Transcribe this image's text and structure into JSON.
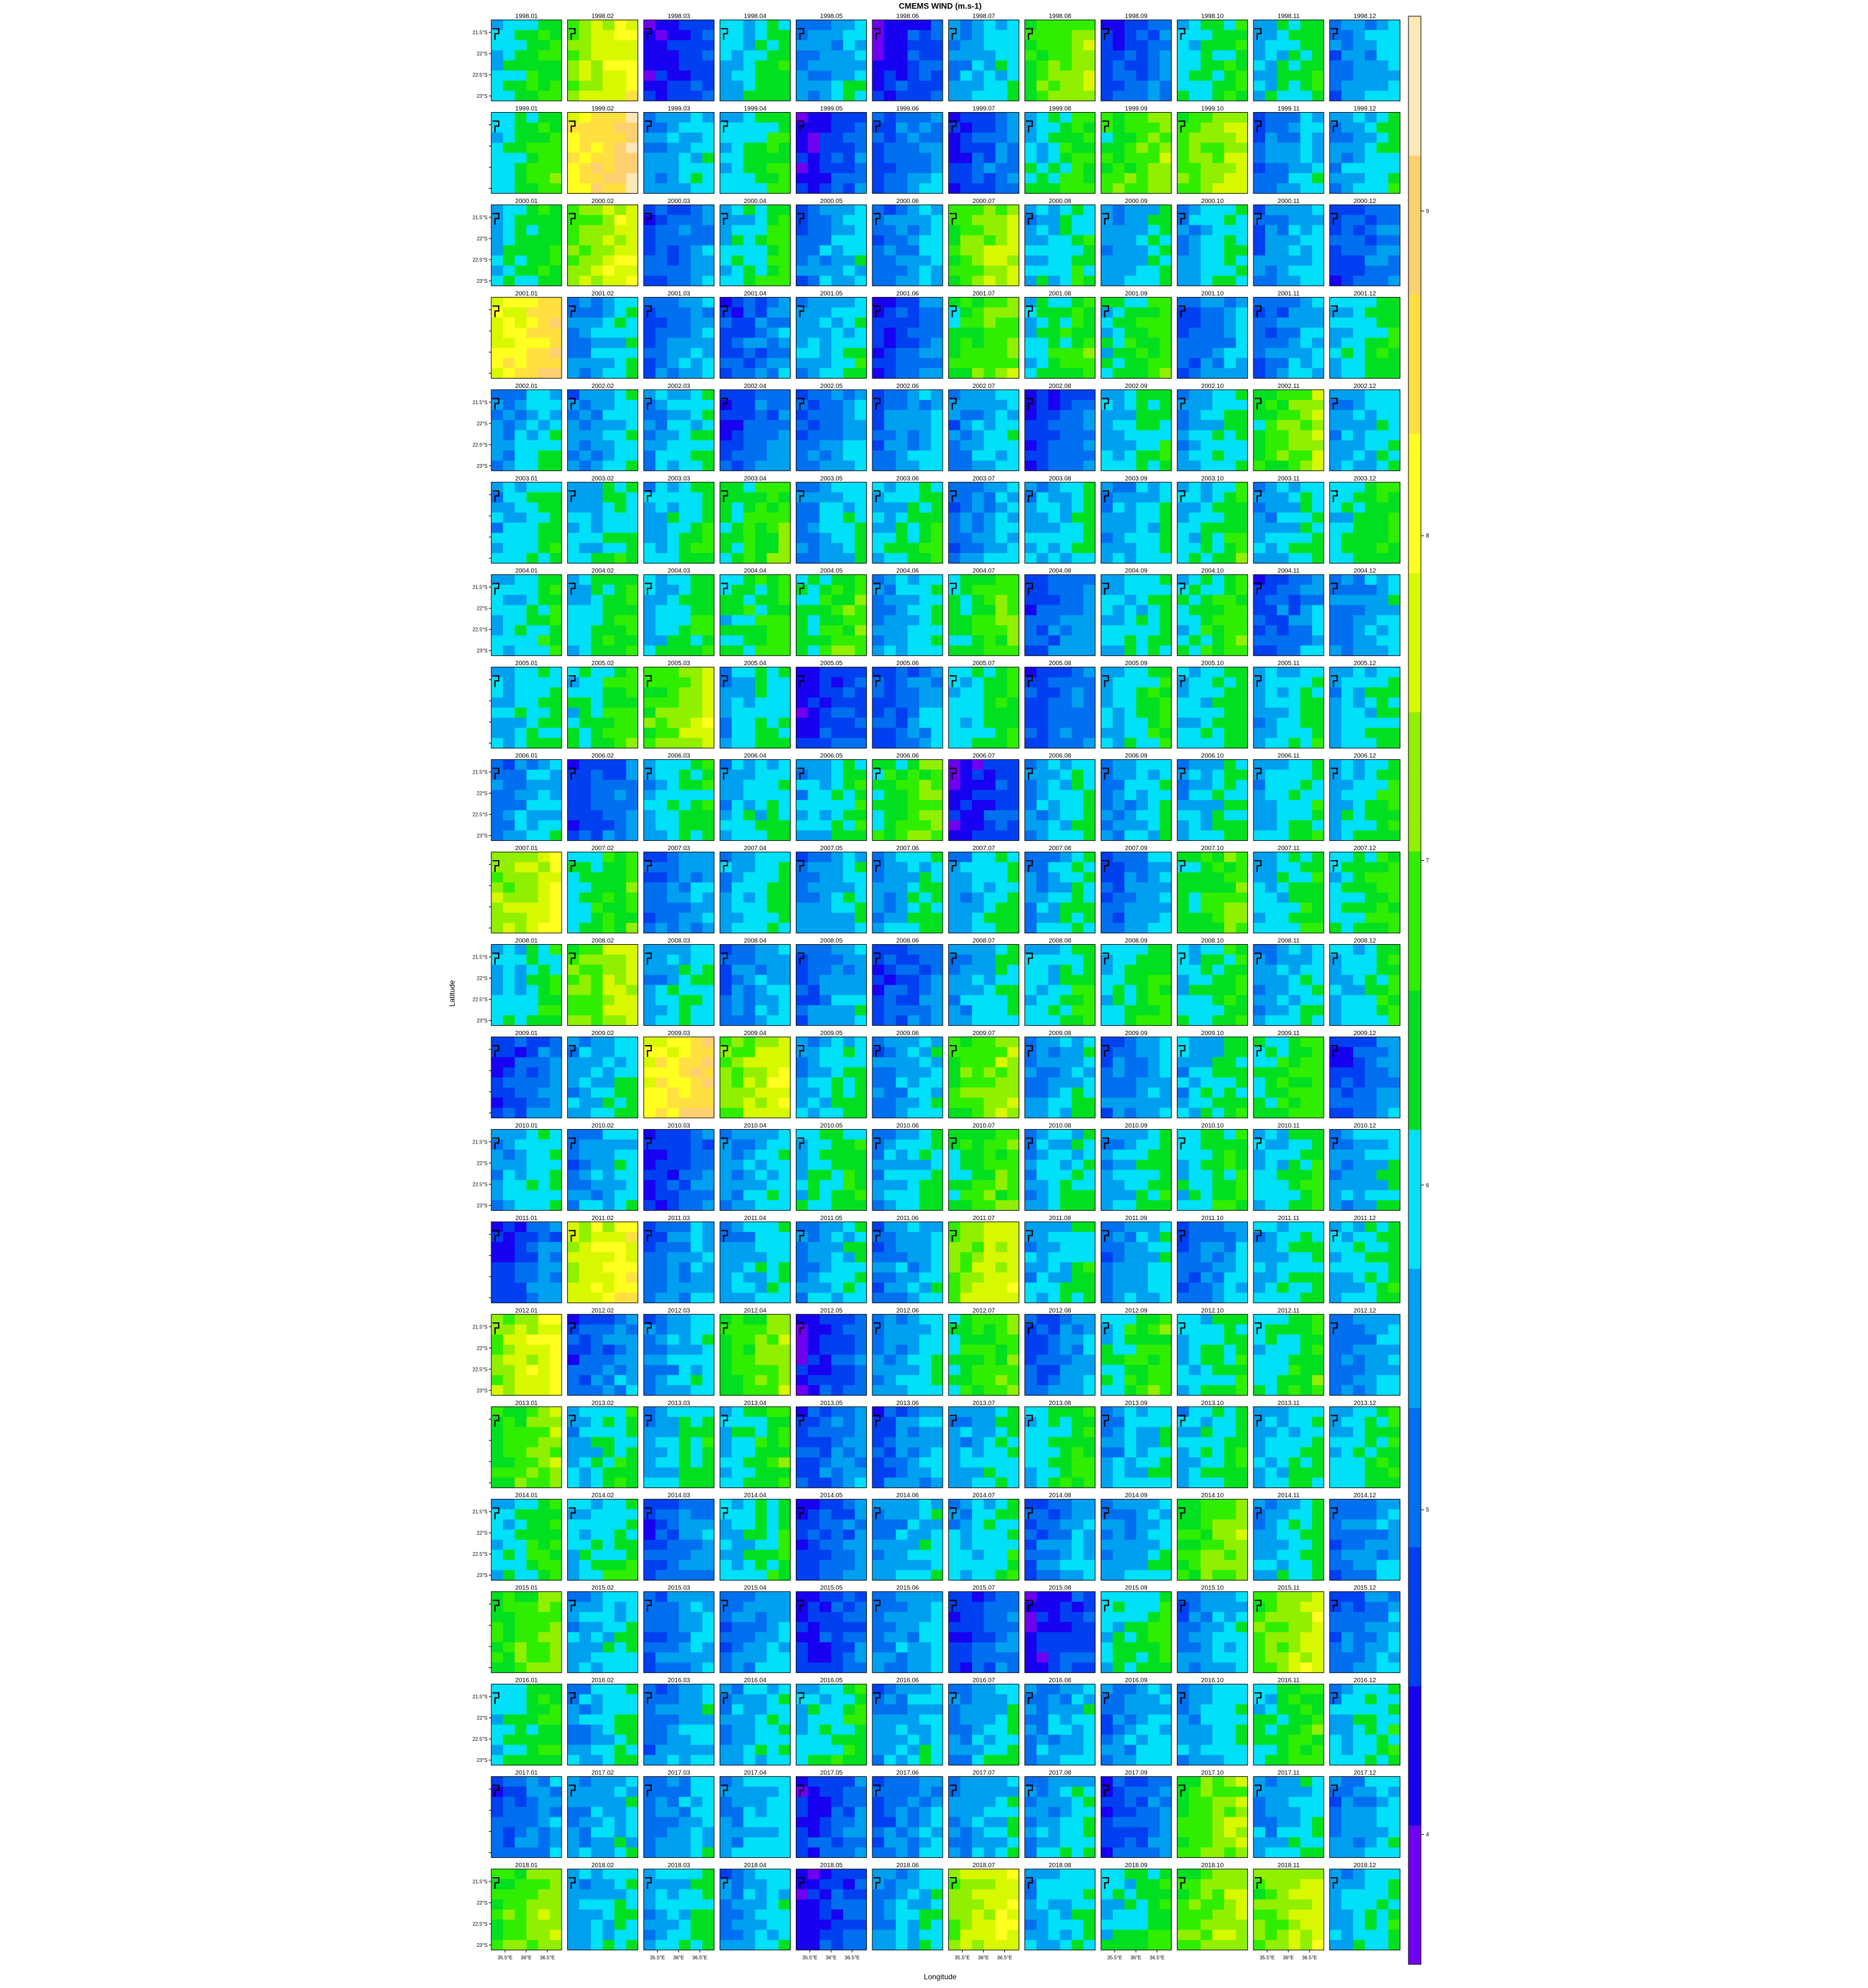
{
  "chart_data": {
    "type": "heatmap",
    "title": "CMEMS WIND (m.s-1)",
    "xlabel": "Longitude",
    "ylabel": "Latitude",
    "years": [
      "1998",
      "1999",
      "2000",
      "2001",
      "2002",
      "2003",
      "2004",
      "2005",
      "2006",
      "2007",
      "2008",
      "2009",
      "2010",
      "2011",
      "2012",
      "2013",
      "2014",
      "2015",
      "2016",
      "2017",
      "2018"
    ],
    "months": [
      "01",
      "02",
      "03",
      "04",
      "05",
      "06",
      "07",
      "08",
      "09",
      "10",
      "11",
      "12"
    ],
    "x_ticks": [
      "35.5°E",
      "36°E",
      "36.5°E"
    ],
    "y_ticks": [
      "21.5°S",
      "22°S",
      "22.5°S",
      "23°S"
    ],
    "colorbar_ticks": [
      4,
      5,
      6,
      7,
      8,
      9
    ],
    "colorbar_range": [
      3.6,
      9.6
    ],
    "colorbar_colors": [
      "#7000f0",
      "#1800f0",
      "#0040f0",
      "#0070f0",
      "#00a0f0",
      "#00e0f8",
      "#00e020",
      "#30ee00",
      "#90f000",
      "#d8f800",
      "#ffff20",
      "#ffe040",
      "#ffd070",
      "#ffe8b8"
    ],
    "grid": false,
    "panel_mean_wind": [
      [
        6.3,
        7.6,
        4.5,
        6.0,
        5.6,
        4.6,
        5.7,
        7.0,
        4.9,
        6.2,
        6.1,
        5.5
      ],
      [
        6.3,
        8.6,
        5.7,
        6.2,
        4.6,
        5.2,
        4.9,
        6.3,
        6.9,
        7.2,
        5.4,
        5.8
      ],
      [
        6.2,
        7.5,
        5.1,
        6.2,
        5.5,
        5.4,
        7.1,
        6.0,
        5.8,
        5.8,
        5.5,
        5.0
      ],
      [
        8.2,
        5.7,
        5.3,
        5.1,
        5.8,
        4.9,
        6.8,
        6.3,
        6.4,
        5.3,
        5.3,
        6.1
      ],
      [
        5.7,
        5.6,
        5.8,
        5.0,
        5.3,
        5.4,
        5.6,
        4.9,
        6.0,
        5.9,
        6.9,
        5.8
      ],
      [
        6.0,
        6.0,
        6.1,
        6.5,
        5.7,
        6.1,
        5.5,
        5.8,
        5.8,
        6.2,
        5.8,
        6.3
      ],
      [
        6.1,
        6.2,
        6.1,
        6.4,
        6.6,
        5.8,
        6.6,
        5.2,
        5.9,
        6.4,
        5.1,
        5.5
      ],
      [
        6.0,
        6.4,
        7.1,
        5.9,
        4.6,
        5.2,
        6.2,
        5.1,
        6.1,
        6.1,
        6.0,
        5.9
      ],
      [
        5.5,
        4.9,
        6.0,
        5.9,
        6.0,
        6.7,
        4.5,
        5.8,
        5.7,
        5.9,
        5.9,
        6.1
      ],
      [
        7.5,
        6.4,
        5.3,
        5.9,
        5.6,
        5.8,
        5.8,
        5.8,
        5.3,
        6.6,
        6.1,
        6.3
      ],
      [
        6.1,
        7.2,
        5.9,
        5.4,
        5.4,
        5.0,
        5.8,
        6.1,
        6.3,
        6.2,
        5.8,
        6.1
      ],
      [
        4.9,
        5.8,
        8.3,
        7.4,
        5.9,
        5.6,
        7.0,
        5.7,
        5.4,
        6.0,
        6.5,
        5.0
      ],
      [
        5.8,
        5.6,
        4.8,
        5.7,
        6.2,
        5.8,
        6.6,
        5.8,
        5.9,
        6.2,
        6.1,
        5.7
      ],
      [
        4.9,
        7.8,
        5.4,
        5.8,
        5.7,
        5.5,
        7.4,
        5.9,
        5.6,
        5.3,
        6.0,
        6.0
      ],
      [
        7.6,
        5.1,
        5.6,
        6.9,
        4.6,
        5.7,
        6.6,
        5.2,
        6.5,
        6.1,
        6.3,
        5.4
      ],
      [
        6.9,
        6.0,
        5.9,
        6.3,
        5.1,
        5.3,
        5.8,
        6.3,
        5.8,
        6.0,
        5.9,
        6.1
      ],
      [
        6.2,
        6.1,
        5.1,
        6.1,
        4.9,
        5.6,
        5.9,
        5.3,
        5.6,
        6.9,
        5.9,
        5.3
      ],
      [
        6.8,
        5.8,
        5.3,
        5.4,
        4.7,
        5.5,
        4.8,
        4.5,
        6.2,
        5.5,
        7.3,
        5.3
      ],
      [
        6.2,
        5.8,
        5.5,
        5.8,
        6.2,
        5.6,
        5.7,
        5.6,
        5.5,
        5.8,
        6.4,
        6.0
      ],
      [
        5.2,
        5.6,
        5.5,
        5.7,
        4.8,
        5.3,
        5.6,
        5.7,
        5.0,
        7.0,
        5.8,
        5.5
      ],
      [
        7.0,
        5.8,
        5.8,
        5.6,
        4.6,
        5.7,
        7.5,
        5.9,
        6.2,
        7.1,
        7.3,
        5.9
      ]
    ]
  }
}
